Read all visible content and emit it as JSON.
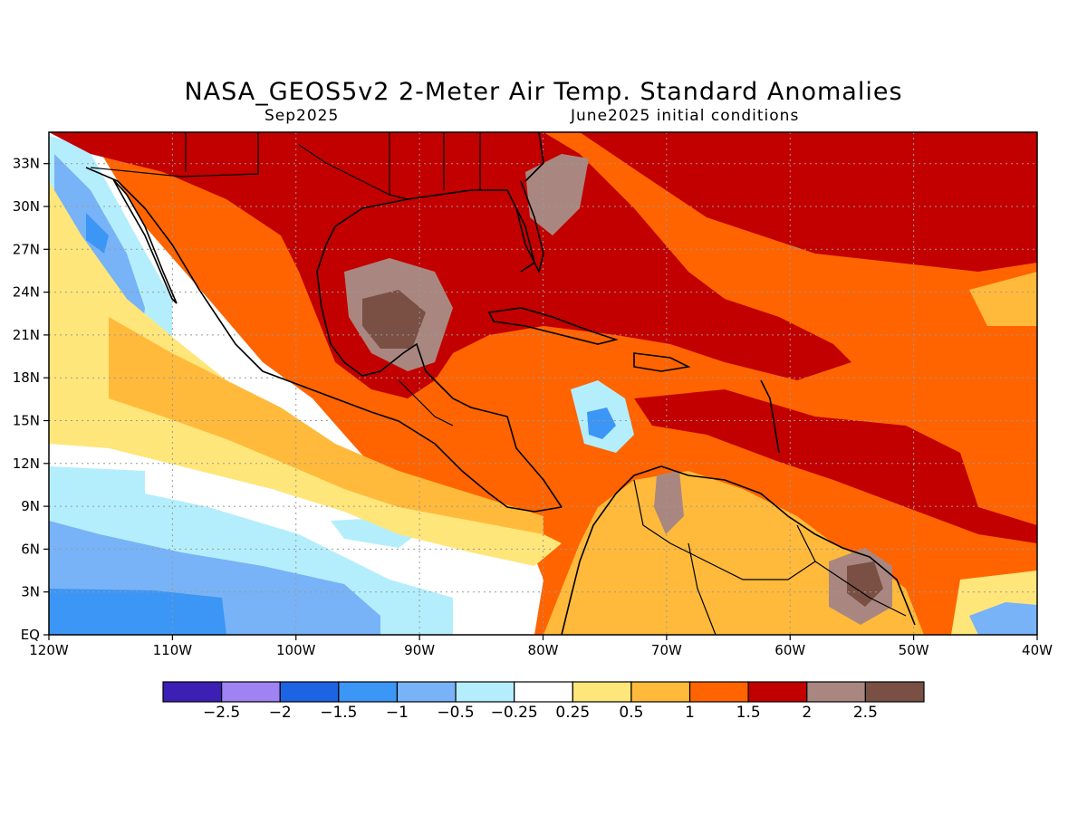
{
  "header": {
    "title": "NASA_GEOS5v2 2-Meter Air Temp. Standard Anomalies",
    "period": "Sep2025",
    "init": "June2025 initial conditions"
  },
  "map": {
    "lon_labels": [
      "120W",
      "110W",
      "100W",
      "90W",
      "80W",
      "70W",
      "60W",
      "50W",
      "40W"
    ],
    "lat_labels": [
      "EQ",
      "3N",
      "6N",
      "9N",
      "12N",
      "15N",
      "18N",
      "21N",
      "24N",
      "27N",
      "30N",
      "33N"
    ]
  },
  "colorbar": {
    "colors": [
      "#3c1fb4",
      "#9f82f4",
      "#1d64e4",
      "#3c96f5",
      "#78b3f7",
      "#b4eefc",
      "#ffffff",
      "#ffe67a",
      "#ffba3c",
      "#ff6400",
      "#c20000",
      "#a98780",
      "#7a4f44"
    ],
    "labels": [
      "-2.5",
      "-2",
      "-1.5",
      "-1",
      "-0.5",
      "-0.25",
      "0.25",
      "0.5",
      "1",
      "1.5",
      "2",
      "2.5"
    ]
  },
  "palette": {
    "ocean_base": "#ff6400",
    "near_normal": "#ffffff",
    "cool_light": "#b4eefc",
    "cool_mid": "#78b3f7",
    "cool_deep": "#3c96f5",
    "warm_light": "#ffe67a",
    "warm_mid": "#ffba3c",
    "warm_strong": "#c20000",
    "warm_extreme": "#a98780",
    "warm_max": "#7a4f44",
    "grid_line": "#999999",
    "coast_line": "#000000"
  }
}
